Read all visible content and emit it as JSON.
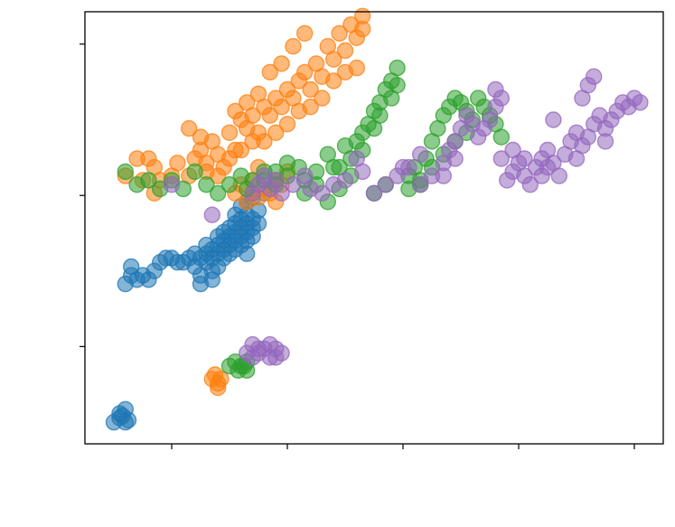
{
  "chart_data": {
    "type": "scatter",
    "title": "",
    "xlabel": "",
    "ylabel": "",
    "xlim": [
      0.0,
      1.0
    ],
    "ylim": [
      0.0,
      1.0
    ],
    "grid": false,
    "legend": "none",
    "x_tick_values": [
      0.15,
      0.35,
      0.55,
      0.75,
      0.95
    ],
    "y_tick_values": [
      0.225,
      0.575,
      0.925
    ],
    "x_tick_labels": [
      "",
      "",
      "",
      "",
      ""
    ],
    "y_tick_labels": [
      "",
      "",
      ""
    ],
    "marker": "circle",
    "marker_alpha": 0.55,
    "series": [
      {
        "color": "#1f77b4",
        "points": [
          [
            0.07,
            0.37
          ],
          [
            0.08,
            0.39
          ],
          [
            0.09,
            0.38
          ],
          [
            0.1,
            0.39
          ],
          [
            0.11,
            0.38
          ],
          [
            0.12,
            0.4
          ],
          [
            0.13,
            0.42
          ],
          [
            0.14,
            0.43
          ],
          [
            0.15,
            0.43
          ],
          [
            0.16,
            0.42
          ],
          [
            0.17,
            0.42
          ],
          [
            0.18,
            0.43
          ],
          [
            0.19,
            0.44
          ],
          [
            0.2,
            0.43
          ],
          [
            0.21,
            0.44
          ],
          [
            0.22,
            0.45
          ],
          [
            0.22,
            0.43
          ],
          [
            0.23,
            0.46
          ],
          [
            0.23,
            0.44
          ],
          [
            0.24,
            0.47
          ],
          [
            0.24,
            0.45
          ],
          [
            0.25,
            0.48
          ],
          [
            0.25,
            0.46
          ],
          [
            0.25,
            0.5
          ],
          [
            0.26,
            0.49
          ],
          [
            0.26,
            0.47
          ],
          [
            0.26,
            0.51
          ],
          [
            0.27,
            0.5
          ],
          [
            0.27,
            0.48
          ],
          [
            0.27,
            0.52
          ],
          [
            0.28,
            0.51
          ],
          [
            0.28,
            0.49
          ],
          [
            0.28,
            0.53
          ],
          [
            0.29,
            0.5
          ],
          [
            0.29,
            0.52
          ],
          [
            0.3,
            0.54
          ],
          [
            0.3,
            0.51
          ],
          [
            0.28,
            0.47
          ],
          [
            0.26,
            0.45
          ],
          [
            0.24,
            0.43
          ],
          [
            0.23,
            0.41
          ],
          [
            0.21,
            0.42
          ],
          [
            0.2,
            0.39
          ],
          [
            0.22,
            0.4
          ],
          [
            0.27,
            0.46
          ],
          [
            0.29,
            0.48
          ],
          [
            0.25,
            0.44
          ],
          [
            0.21,
            0.46
          ],
          [
            0.19,
            0.41
          ],
          [
            0.24,
            0.49
          ],
          [
            0.26,
            0.53
          ],
          [
            0.27,
            0.55
          ],
          [
            0.28,
            0.56
          ],
          [
            0.29,
            0.57
          ],
          [
            0.31,
            0.58
          ],
          [
            0.08,
            0.41
          ],
          [
            0.23,
            0.48
          ],
          [
            0.28,
            0.44
          ],
          [
            0.2,
            0.37
          ],
          [
            0.22,
            0.38
          ],
          [
            0.05,
            0.05
          ],
          [
            0.06,
            0.06
          ],
          [
            0.07,
            0.05
          ],
          [
            0.07,
            0.08
          ],
          [
            0.065,
            0.065
          ],
          [
            0.075,
            0.055
          ],
          [
            0.06,
            0.07
          ]
        ]
      },
      {
        "color": "#ff7f0e",
        "points": [
          [
            0.07,
            0.62
          ],
          [
            0.09,
            0.66
          ],
          [
            0.1,
            0.61
          ],
          [
            0.11,
            0.66
          ],
          [
            0.12,
            0.64
          ],
          [
            0.13,
            0.61
          ],
          [
            0.15,
            0.62
          ],
          [
            0.16,
            0.65
          ],
          [
            0.18,
            0.62
          ],
          [
            0.19,
            0.66
          ],
          [
            0.2,
            0.68
          ],
          [
            0.21,
            0.65
          ],
          [
            0.22,
            0.7
          ],
          [
            0.23,
            0.67
          ],
          [
            0.24,
            0.64
          ],
          [
            0.25,
            0.72
          ],
          [
            0.26,
            0.68
          ],
          [
            0.27,
            0.75
          ],
          [
            0.28,
            0.73
          ],
          [
            0.29,
            0.76
          ],
          [
            0.3,
            0.72
          ],
          [
            0.31,
            0.78
          ],
          [
            0.32,
            0.76
          ],
          [
            0.33,
            0.8
          ],
          [
            0.34,
            0.78
          ],
          [
            0.35,
            0.82
          ],
          [
            0.36,
            0.8
          ],
          [
            0.37,
            0.84
          ],
          [
            0.38,
            0.86
          ],
          [
            0.39,
            0.82
          ],
          [
            0.4,
            0.88
          ],
          [
            0.41,
            0.85
          ],
          [
            0.42,
            0.92
          ],
          [
            0.43,
            0.89
          ],
          [
            0.44,
            0.95
          ],
          [
            0.45,
            0.91
          ],
          [
            0.46,
            0.97
          ],
          [
            0.47,
            0.94
          ],
          [
            0.48,
            0.99
          ],
          [
            0.48,
            0.96
          ],
          [
            0.47,
            0.87
          ],
          [
            0.45,
            0.86
          ],
          [
            0.43,
            0.84
          ],
          [
            0.41,
            0.8
          ],
          [
            0.39,
            0.78
          ],
          [
            0.37,
            0.77
          ],
          [
            0.35,
            0.74
          ],
          [
            0.33,
            0.72
          ],
          [
            0.31,
            0.7
          ],
          [
            0.29,
            0.7
          ],
          [
            0.27,
            0.68
          ],
          [
            0.25,
            0.66
          ],
          [
            0.23,
            0.62
          ],
          [
            0.21,
            0.63
          ],
          [
            0.2,
            0.71
          ],
          [
            0.18,
            0.73
          ],
          [
            0.26,
            0.77
          ],
          [
            0.28,
            0.79
          ],
          [
            0.3,
            0.81
          ],
          [
            0.32,
            0.86
          ],
          [
            0.34,
            0.88
          ],
          [
            0.36,
            0.92
          ],
          [
            0.38,
            0.95
          ],
          [
            0.28,
            0.56
          ],
          [
            0.29,
            0.58
          ],
          [
            0.3,
            0.57
          ],
          [
            0.31,
            0.59
          ],
          [
            0.32,
            0.58
          ],
          [
            0.33,
            0.56
          ],
          [
            0.34,
            0.6
          ],
          [
            0.26,
            0.58
          ],
          [
            0.27,
            0.6
          ],
          [
            0.12,
            0.58
          ],
          [
            0.33,
            0.61
          ],
          [
            0.35,
            0.63
          ],
          [
            0.3,
            0.64
          ],
          [
            0.29,
            0.61
          ],
          [
            0.22,
            0.15
          ],
          [
            0.23,
            0.14
          ],
          [
            0.225,
            0.16
          ],
          [
            0.235,
            0.15
          ],
          [
            0.23,
            0.13
          ]
        ]
      },
      {
        "color": "#2ca02c",
        "points": [
          [
            0.07,
            0.63
          ],
          [
            0.09,
            0.6
          ],
          [
            0.11,
            0.61
          ],
          [
            0.13,
            0.59
          ],
          [
            0.15,
            0.61
          ],
          [
            0.17,
            0.59
          ],
          [
            0.19,
            0.63
          ],
          [
            0.21,
            0.6
          ],
          [
            0.23,
            0.58
          ],
          [
            0.25,
            0.6
          ],
          [
            0.27,
            0.62
          ],
          [
            0.29,
            0.61
          ],
          [
            0.31,
            0.63
          ],
          [
            0.33,
            0.6
          ],
          [
            0.35,
            0.62
          ],
          [
            0.37,
            0.64
          ],
          [
            0.38,
            0.61
          ],
          [
            0.4,
            0.63
          ],
          [
            0.42,
            0.67
          ],
          [
            0.43,
            0.64
          ],
          [
            0.45,
            0.69
          ],
          [
            0.46,
            0.66
          ],
          [
            0.47,
            0.7
          ],
          [
            0.48,
            0.72
          ],
          [
            0.49,
            0.74
          ],
          [
            0.5,
            0.77
          ],
          [
            0.51,
            0.79
          ],
          [
            0.52,
            0.82
          ],
          [
            0.53,
            0.84
          ],
          [
            0.54,
            0.87
          ],
          [
            0.54,
            0.83
          ],
          [
            0.53,
            0.8
          ],
          [
            0.51,
            0.76
          ],
          [
            0.5,
            0.73
          ],
          [
            0.48,
            0.68
          ],
          [
            0.46,
            0.62
          ],
          [
            0.44,
            0.59
          ],
          [
            0.42,
            0.56
          ],
          [
            0.4,
            0.6
          ],
          [
            0.38,
            0.58
          ],
          [
            0.56,
            0.62
          ],
          [
            0.57,
            0.64
          ],
          [
            0.58,
            0.6
          ],
          [
            0.59,
            0.66
          ],
          [
            0.6,
            0.7
          ],
          [
            0.61,
            0.73
          ],
          [
            0.62,
            0.76
          ],
          [
            0.63,
            0.78
          ],
          [
            0.64,
            0.8
          ],
          [
            0.65,
            0.79
          ],
          [
            0.66,
            0.77
          ],
          [
            0.67,
            0.75
          ],
          [
            0.68,
            0.8
          ],
          [
            0.69,
            0.78
          ],
          [
            0.7,
            0.76
          ],
          [
            0.71,
            0.74
          ],
          [
            0.72,
            0.71
          ],
          [
            0.66,
            0.72
          ],
          [
            0.64,
            0.7
          ],
          [
            0.62,
            0.67
          ],
          [
            0.6,
            0.64
          ],
          [
            0.58,
            0.61
          ],
          [
            0.56,
            0.59
          ],
          [
            0.52,
            0.6
          ],
          [
            0.5,
            0.58
          ],
          [
            0.44,
            0.64
          ],
          [
            0.31,
            0.61
          ],
          [
            0.33,
            0.63
          ],
          [
            0.35,
            0.65
          ],
          [
            0.28,
            0.59
          ],
          [
            0.26,
            0.19
          ],
          [
            0.27,
            0.18
          ],
          [
            0.28,
            0.19
          ],
          [
            0.265,
            0.17
          ],
          [
            0.28,
            0.17
          ],
          [
            0.275,
            0.18
          ],
          [
            0.25,
            0.18
          ]
        ]
      },
      {
        "color": "#9467bd",
        "points": [
          [
            0.15,
            0.6
          ],
          [
            0.22,
            0.53
          ],
          [
            0.29,
            0.58
          ],
          [
            0.3,
            0.6
          ],
          [
            0.31,
            0.62
          ],
          [
            0.32,
            0.59
          ],
          [
            0.33,
            0.61
          ],
          [
            0.34,
            0.58
          ],
          [
            0.36,
            0.6
          ],
          [
            0.38,
            0.62
          ],
          [
            0.39,
            0.59
          ],
          [
            0.41,
            0.58
          ],
          [
            0.43,
            0.6
          ],
          [
            0.45,
            0.61
          ],
          [
            0.47,
            0.66
          ],
          [
            0.48,
            0.63
          ],
          [
            0.5,
            0.58
          ],
          [
            0.52,
            0.6
          ],
          [
            0.54,
            0.62
          ],
          [
            0.56,
            0.64
          ],
          [
            0.58,
            0.6
          ],
          [
            0.6,
            0.62
          ],
          [
            0.62,
            0.65
          ],
          [
            0.63,
            0.68
          ],
          [
            0.64,
            0.7
          ],
          [
            0.65,
            0.73
          ],
          [
            0.66,
            0.76
          ],
          [
            0.67,
            0.74
          ],
          [
            0.68,
            0.71
          ],
          [
            0.69,
            0.73
          ],
          [
            0.7,
            0.75
          ],
          [
            0.71,
            0.78
          ],
          [
            0.72,
            0.8
          ],
          [
            0.71,
            0.82
          ],
          [
            0.73,
            0.61
          ],
          [
            0.74,
            0.63
          ],
          [
            0.75,
            0.65
          ],
          [
            0.76,
            0.62
          ],
          [
            0.77,
            0.6
          ],
          [
            0.78,
            0.64
          ],
          [
            0.79,
            0.66
          ],
          [
            0.8,
            0.68
          ],
          [
            0.81,
            0.65
          ],
          [
            0.82,
            0.62
          ],
          [
            0.83,
            0.67
          ],
          [
            0.84,
            0.7
          ],
          [
            0.85,
            0.72
          ],
          [
            0.86,
            0.69
          ],
          [
            0.87,
            0.71
          ],
          [
            0.88,
            0.74
          ],
          [
            0.89,
            0.76
          ],
          [
            0.9,
            0.73
          ],
          [
            0.91,
            0.75
          ],
          [
            0.92,
            0.77
          ],
          [
            0.93,
            0.79
          ],
          [
            0.94,
            0.78
          ],
          [
            0.95,
            0.8
          ],
          [
            0.96,
            0.79
          ],
          [
            0.9,
            0.7
          ],
          [
            0.85,
            0.66
          ],
          [
            0.8,
            0.64
          ],
          [
            0.76,
            0.66
          ],
          [
            0.74,
            0.68
          ],
          [
            0.72,
            0.66
          ],
          [
            0.86,
            0.8
          ],
          [
            0.87,
            0.83
          ],
          [
            0.88,
            0.85
          ],
          [
            0.81,
            0.75
          ],
          [
            0.79,
            0.62
          ],
          [
            0.64,
            0.66
          ],
          [
            0.62,
            0.62
          ],
          [
            0.58,
            0.67
          ],
          [
            0.55,
            0.64
          ],
          [
            0.28,
            0.21
          ],
          [
            0.29,
            0.2
          ],
          [
            0.3,
            0.21
          ],
          [
            0.31,
            0.22
          ],
          [
            0.32,
            0.2
          ],
          [
            0.33,
            0.22
          ],
          [
            0.34,
            0.21
          ],
          [
            0.32,
            0.23
          ],
          [
            0.3,
            0.22
          ],
          [
            0.29,
            0.23
          ],
          [
            0.33,
            0.2
          ]
        ]
      }
    ]
  }
}
